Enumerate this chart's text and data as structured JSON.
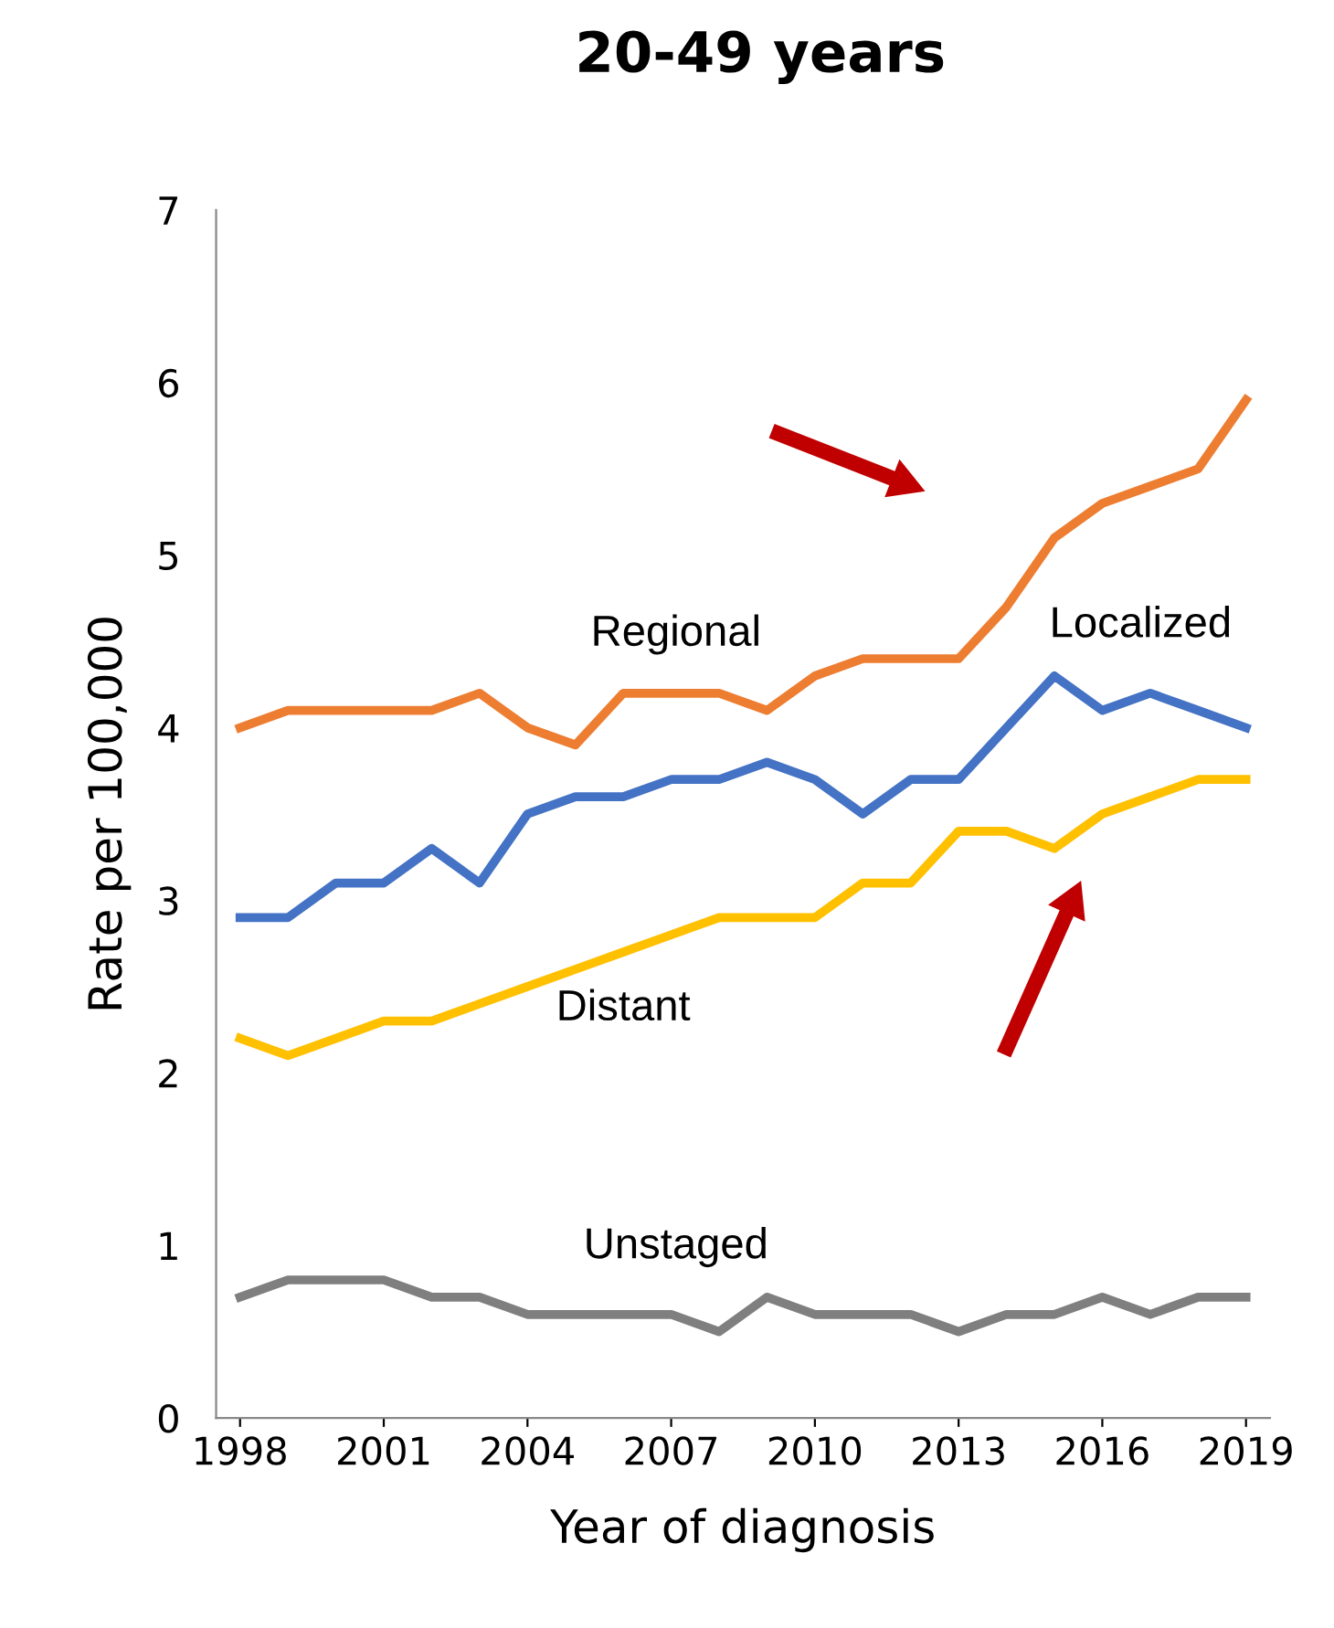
{
  "chart_data": {
    "type": "line",
    "title": "20-49 years",
    "xlabel": "Year of diagnosis",
    "ylabel": "Rate per 100,000",
    "x": [
      1998,
      1999,
      2000,
      2001,
      2002,
      2003,
      2004,
      2005,
      2006,
      2007,
      2008,
      2009,
      2010,
      2011,
      2012,
      2013,
      2014,
      2015,
      2016,
      2017,
      2018,
      2019
    ],
    "series": [
      {
        "name": "Regional",
        "color": "#ed7d31",
        "values": [
          4.0,
          4.1,
          4.1,
          4.1,
          4.1,
          4.2,
          4.0,
          3.9,
          4.2,
          4.2,
          4.2,
          4.1,
          4.3,
          4.4,
          4.4,
          4.4,
          4.7,
          5.1,
          5.3,
          5.4,
          5.5,
          5.9
        ]
      },
      {
        "name": "Localized",
        "color": "#4472c4",
        "values": [
          2.9,
          2.9,
          3.1,
          3.1,
          3.3,
          3.1,
          3.5,
          3.6,
          3.6,
          3.7,
          3.7,
          3.8,
          3.7,
          3.5,
          3.7,
          3.7,
          4.0,
          4.3,
          4.1,
          4.2,
          4.1,
          4.0
        ]
      },
      {
        "name": "Distant",
        "color": "#ffc000",
        "values": [
          2.2,
          2.1,
          2.2,
          2.3,
          2.3,
          2.4,
          2.5,
          2.6,
          2.7,
          2.8,
          2.9,
          2.9,
          2.9,
          3.1,
          3.1,
          3.4,
          3.4,
          3.3,
          3.5,
          3.6,
          3.7,
          3.7
        ]
      },
      {
        "name": "Unstaged",
        "color": "#7f7f7f",
        "values": [
          0.7,
          0.8,
          0.8,
          0.8,
          0.7,
          0.7,
          0.6,
          0.6,
          0.6,
          0.6,
          0.5,
          0.7,
          0.6,
          0.6,
          0.6,
          0.5,
          0.6,
          0.6,
          0.7,
          0.6,
          0.7,
          0.7
        ]
      }
    ],
    "xlim": [
      1997.5,
      2019.5
    ],
    "xticks": [
      1998,
      2001,
      2004,
      2007,
      2010,
      2013,
      2016,
      2019
    ],
    "ylim": [
      0,
      7
    ],
    "yticks": [
      0,
      1,
      2,
      3,
      4,
      5,
      6,
      7
    ],
    "grid": false,
    "legend": false,
    "line_style": "solid",
    "marker": "none"
  }
}
